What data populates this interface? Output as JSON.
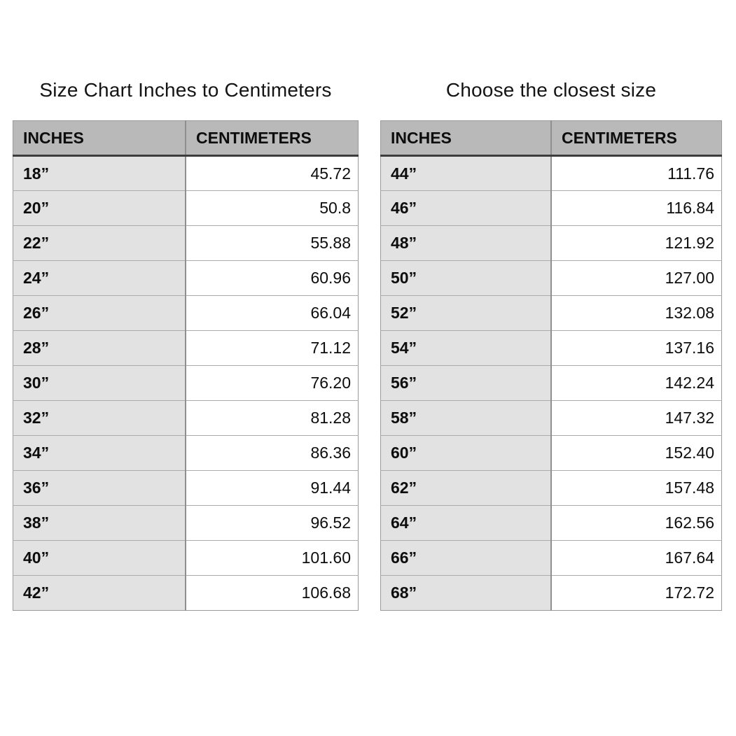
{
  "colors": {
    "page_bg": "#ffffff",
    "header_bg": "#b9b9b9",
    "inches_cell_bg": "#e2e2e2",
    "cm_cell_bg": "#ffffff",
    "header_bottom_border": "#3d3d3d",
    "row_border": "#ababab",
    "column_divider": "#8f8f8f",
    "text": "#0d0d0d"
  },
  "tables": [
    {
      "title": "Size Chart Inches to Centimeters",
      "columns": [
        "INCHES",
        "CENTIMETERS"
      ],
      "rows": [
        {
          "inches": "18”",
          "centimeters": "45.72"
        },
        {
          "inches": "20”",
          "centimeters": "50.8"
        },
        {
          "inches": "22”",
          "centimeters": "55.88"
        },
        {
          "inches": "24”",
          "centimeters": "60.96"
        },
        {
          "inches": "26”",
          "centimeters": "66.04"
        },
        {
          "inches": "28”",
          "centimeters": "71.12"
        },
        {
          "inches": "30”",
          "centimeters": "76.20"
        },
        {
          "inches": "32”",
          "centimeters": "81.28"
        },
        {
          "inches": "34”",
          "centimeters": "86.36"
        },
        {
          "inches": "36”",
          "centimeters": "91.44"
        },
        {
          "inches": "38”",
          "centimeters": "96.52"
        },
        {
          "inches": "40”",
          "centimeters": "101.60"
        },
        {
          "inches": "42”",
          "centimeters": "106.68"
        }
      ]
    },
    {
      "title": "Choose the closest size",
      "columns": [
        "INCHES",
        "CENTIMETERS"
      ],
      "rows": [
        {
          "inches": "44”",
          "centimeters": "111.76"
        },
        {
          "inches": "46”",
          "centimeters": "116.84"
        },
        {
          "inches": "48”",
          "centimeters": "121.92"
        },
        {
          "inches": "50”",
          "centimeters": "127.00"
        },
        {
          "inches": "52”",
          "centimeters": "132.08"
        },
        {
          "inches": "54”",
          "centimeters": "137.16"
        },
        {
          "inches": "56”",
          "centimeters": "142.24"
        },
        {
          "inches": "58”",
          "centimeters": "147.32"
        },
        {
          "inches": "60”",
          "centimeters": "152.40"
        },
        {
          "inches": "62”",
          "centimeters": "157.48"
        },
        {
          "inches": "64”",
          "centimeters": "162.56"
        },
        {
          "inches": "66”",
          "centimeters": "167.64"
        },
        {
          "inches": "68”",
          "centimeters": "172.72"
        }
      ]
    }
  ],
  "chart_data": [
    {
      "type": "table",
      "title": "Size Chart Inches to Centimeters",
      "columns": [
        "INCHES",
        "CENTIMETERS"
      ],
      "rows": [
        [
          "18\"",
          45.72
        ],
        [
          "20\"",
          50.8
        ],
        [
          "22\"",
          55.88
        ],
        [
          "24\"",
          60.96
        ],
        [
          "26\"",
          66.04
        ],
        [
          "28\"",
          71.12
        ],
        [
          "30\"",
          76.2
        ],
        [
          "32\"",
          81.28
        ],
        [
          "34\"",
          86.36
        ],
        [
          "36\"",
          91.44
        ],
        [
          "38\"",
          96.52
        ],
        [
          "40\"",
          101.6
        ],
        [
          "42\"",
          106.68
        ]
      ]
    },
    {
      "type": "table",
      "title": "Choose the closest size",
      "columns": [
        "INCHES",
        "CENTIMETERS"
      ],
      "rows": [
        [
          "44\"",
          111.76
        ],
        [
          "46\"",
          116.84
        ],
        [
          "48\"",
          121.92
        ],
        [
          "50\"",
          127.0
        ],
        [
          "52\"",
          132.08
        ],
        [
          "54\"",
          137.16
        ],
        [
          "56\"",
          142.24
        ],
        [
          "58\"",
          147.32
        ],
        [
          "60\"",
          152.4
        ],
        [
          "62\"",
          157.48
        ],
        [
          "64\"",
          162.56
        ],
        [
          "66\"",
          167.64
        ],
        [
          "68\"",
          172.72
        ]
      ]
    }
  ]
}
